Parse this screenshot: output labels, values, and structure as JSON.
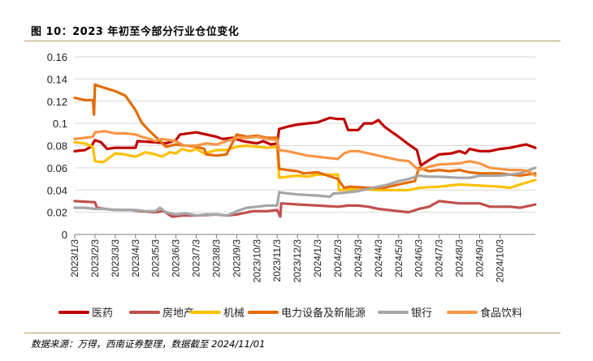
{
  "figure": {
    "title": "图 10：2023 年初至今部分行业仓位变化",
    "source": "数据来源：万得，西南证券整理，数据截至 2024/11/01"
  },
  "chart_data": {
    "type": "line",
    "title": "",
    "xlabel": "",
    "ylabel": "",
    "x": [
      "2023/1/3",
      "2023/2/3",
      "2023/3/3",
      "2023/4/3",
      "2023/5/3",
      "2023/6/3",
      "2023/7/3",
      "2023/8/3",
      "2023/9/3",
      "2023/10/3",
      "2023/11/3",
      "2023/12/3",
      "2024/1/3",
      "2024/2/3",
      "2024/3/3",
      "2024/4/3",
      "2024/5/3",
      "2024/6/3",
      "2024/7/3",
      "2024/8/3",
      "2024/9/3",
      "2024/10/3"
    ],
    "yticks": [
      "0",
      "0.02",
      "0.04",
      "0.06",
      "0.08",
      "0.1",
      "0.12",
      "0.14",
      "0.16"
    ],
    "ylim": [
      0,
      0.16
    ],
    "xlim": [
      0,
      22.75
    ],
    "grid": true,
    "legend": "bottom",
    "series": [
      {
        "name": "医药",
        "color": "#c00000",
        "points": [
          [
            0,
            0.075
          ],
          [
            0.5,
            0.076
          ],
          [
            0.8,
            0.079
          ],
          [
            1.0,
            0.085
          ],
          [
            1.3,
            0.083
          ],
          [
            1.6,
            0.077
          ],
          [
            2.0,
            0.078
          ],
          [
            3.0,
            0.078
          ],
          [
            3.1,
            0.084
          ],
          [
            4.0,
            0.083
          ],
          [
            4.5,
            0.082
          ],
          [
            5.0,
            0.085
          ],
          [
            5.2,
            0.09
          ],
          [
            6.0,
            0.092
          ],
          [
            6.5,
            0.09
          ],
          [
            7.0,
            0.088
          ],
          [
            7.3,
            0.086
          ],
          [
            7.8,
            0.087
          ],
          [
            8.3,
            0.084
          ],
          [
            9.0,
            0.082
          ],
          [
            9.3,
            0.084
          ],
          [
            9.7,
            0.081
          ],
          [
            10.0,
            0.082
          ],
          [
            10.1,
            0.095
          ],
          [
            10.5,
            0.097
          ],
          [
            11.0,
            0.099
          ],
          [
            11.5,
            0.1
          ],
          [
            12.0,
            0.101
          ],
          [
            12.3,
            0.103
          ],
          [
            12.6,
            0.105
          ],
          [
            13.0,
            0.104
          ],
          [
            13.3,
            0.104
          ],
          [
            13.5,
            0.094
          ],
          [
            14.0,
            0.094
          ],
          [
            14.3,
            0.1
          ],
          [
            14.7,
            0.1
          ],
          [
            15.0,
            0.103
          ],
          [
            15.3,
            0.097
          ],
          [
            15.6,
            0.093
          ],
          [
            16.0,
            0.088
          ],
          [
            16.5,
            0.081
          ],
          [
            16.9,
            0.076
          ],
          [
            17.1,
            0.062
          ],
          [
            17.5,
            0.067
          ],
          [
            18.0,
            0.072
          ],
          [
            18.6,
            0.073
          ],
          [
            19.0,
            0.075
          ],
          [
            19.3,
            0.073
          ],
          [
            19.5,
            0.077
          ],
          [
            20.0,
            0.075
          ],
          [
            20.5,
            0.075
          ],
          [
            21.0,
            0.077
          ],
          [
            21.5,
            0.078
          ],
          [
            22.0,
            0.08
          ],
          [
            22.3,
            0.081
          ],
          [
            22.75,
            0.078
          ]
        ]
      },
      {
        "name": "房地产",
        "color": "#c0504d",
        "points": [
          [
            0,
            0.03
          ],
          [
            1.0,
            0.029
          ],
          [
            1.1,
            0.024
          ],
          [
            1.5,
            0.023
          ],
          [
            2.0,
            0.022
          ],
          [
            2.8,
            0.022
          ],
          [
            3.2,
            0.021
          ],
          [
            4.0,
            0.02
          ],
          [
            4.4,
            0.021
          ],
          [
            4.8,
            0.016
          ],
          [
            5.3,
            0.017
          ],
          [
            6.0,
            0.017
          ],
          [
            7.0,
            0.018
          ],
          [
            7.5,
            0.017
          ],
          [
            8.0,
            0.018
          ],
          [
            8.8,
            0.021
          ],
          [
            9.5,
            0.021
          ],
          [
            10.0,
            0.022
          ],
          [
            10.15,
            0.016
          ],
          [
            10.2,
            0.028
          ],
          [
            11.0,
            0.027
          ],
          [
            12.0,
            0.026
          ],
          [
            13.0,
            0.025
          ],
          [
            13.5,
            0.026
          ],
          [
            14.0,
            0.026
          ],
          [
            14.5,
            0.025
          ],
          [
            15.0,
            0.023
          ],
          [
            16.0,
            0.021
          ],
          [
            16.5,
            0.02
          ],
          [
            17.0,
            0.023
          ],
          [
            17.5,
            0.025
          ],
          [
            18.0,
            0.03
          ],
          [
            18.5,
            0.029
          ],
          [
            19.0,
            0.028
          ],
          [
            20.0,
            0.028
          ],
          [
            20.5,
            0.025
          ],
          [
            21.0,
            0.025
          ],
          [
            21.5,
            0.025
          ],
          [
            22.0,
            0.024
          ],
          [
            22.5,
            0.026
          ],
          [
            22.75,
            0.027
          ]
        ]
      },
      {
        "name": "机械",
        "color": "#ffc000",
        "points": [
          [
            0,
            0.083
          ],
          [
            0.5,
            0.082
          ],
          [
            0.9,
            0.079
          ],
          [
            1.0,
            0.066
          ],
          [
            1.4,
            0.065
          ],
          [
            1.7,
            0.069
          ],
          [
            2.0,
            0.073
          ],
          [
            2.5,
            0.072
          ],
          [
            3.0,
            0.07
          ],
          [
            3.5,
            0.074
          ],
          [
            4.0,
            0.072
          ],
          [
            4.3,
            0.07
          ],
          [
            4.7,
            0.074
          ],
          [
            5.0,
            0.073
          ],
          [
            5.3,
            0.077
          ],
          [
            5.7,
            0.075
          ],
          [
            6.0,
            0.077
          ],
          [
            6.4,
            0.073
          ],
          [
            7.0,
            0.076
          ],
          [
            7.5,
            0.076
          ],
          [
            8.0,
            0.079
          ],
          [
            8.5,
            0.08
          ],
          [
            9.0,
            0.079
          ],
          [
            9.5,
            0.078
          ],
          [
            10.0,
            0.079
          ],
          [
            10.1,
            0.051
          ],
          [
            10.5,
            0.052
          ],
          [
            11.0,
            0.053
          ],
          [
            11.5,
            0.052
          ],
          [
            12.0,
            0.054
          ],
          [
            13.0,
            0.054
          ],
          [
            13.05,
            0.04
          ],
          [
            14.0,
            0.041
          ],
          [
            15.0,
            0.04
          ],
          [
            16.0,
            0.04
          ],
          [
            16.5,
            0.04
          ],
          [
            17.0,
            0.042
          ],
          [
            18.0,
            0.043
          ],
          [
            19.0,
            0.045
          ],
          [
            20.0,
            0.044
          ],
          [
            21.0,
            0.043
          ],
          [
            21.5,
            0.042
          ],
          [
            22.0,
            0.045
          ],
          [
            22.75,
            0.049
          ]
        ]
      },
      {
        "name": "电力设备及新能源",
        "color": "#e36c09",
        "points": [
          [
            0,
            0.123
          ],
          [
            0.5,
            0.121
          ],
          [
            0.9,
            0.121
          ],
          [
            0.95,
            0.108
          ],
          [
            1.0,
            0.135
          ],
          [
            1.3,
            0.133
          ],
          [
            2.0,
            0.129
          ],
          [
            2.5,
            0.125
          ],
          [
            3.0,
            0.112
          ],
          [
            3.3,
            0.101
          ],
          [
            3.7,
            0.093
          ],
          [
            4.0,
            0.088
          ],
          [
            4.5,
            0.079
          ],
          [
            5.0,
            0.081
          ],
          [
            5.5,
            0.08
          ],
          [
            6.0,
            0.079
          ],
          [
            6.4,
            0.077
          ],
          [
            6.5,
            0.072
          ],
          [
            7.0,
            0.071
          ],
          [
            7.5,
            0.072
          ],
          [
            8.0,
            0.09
          ],
          [
            8.5,
            0.088
          ],
          [
            9.0,
            0.089
          ],
          [
            9.5,
            0.087
          ],
          [
            10.0,
            0.087
          ],
          [
            10.1,
            0.059
          ],
          [
            10.5,
            0.058
          ],
          [
            11.0,
            0.057
          ],
          [
            11.3,
            0.055
          ],
          [
            12.0,
            0.056
          ],
          [
            12.5,
            0.053
          ],
          [
            13.0,
            0.05
          ],
          [
            13.3,
            0.042
          ],
          [
            13.6,
            0.043
          ],
          [
            14.5,
            0.042
          ],
          [
            15.3,
            0.042
          ],
          [
            16.0,
            0.045
          ],
          [
            16.5,
            0.047
          ],
          [
            16.8,
            0.048
          ],
          [
            17.0,
            0.06
          ],
          [
            17.5,
            0.057
          ],
          [
            18.0,
            0.058
          ],
          [
            18.5,
            0.057
          ],
          [
            19.0,
            0.058
          ],
          [
            19.5,
            0.056
          ],
          [
            20.0,
            0.055
          ],
          [
            21.0,
            0.055
          ],
          [
            21.5,
            0.054
          ],
          [
            22.0,
            0.053
          ],
          [
            22.75,
            0.055
          ]
        ]
      },
      {
        "name": "银行",
        "color": "#a6a6a6",
        "points": [
          [
            0,
            0.024
          ],
          [
            0.5,
            0.024
          ],
          [
            1.0,
            0.023
          ],
          [
            1.5,
            0.023
          ],
          [
            2.0,
            0.022
          ],
          [
            3.0,
            0.022
          ],
          [
            3.5,
            0.021
          ],
          [
            4.0,
            0.021
          ],
          [
            4.2,
            0.024
          ],
          [
            4.5,
            0.02
          ],
          [
            5.0,
            0.018
          ],
          [
            5.5,
            0.019
          ],
          [
            6.0,
            0.017
          ],
          [
            6.5,
            0.018
          ],
          [
            7.0,
            0.018
          ],
          [
            7.5,
            0.017
          ],
          [
            7.8,
            0.019
          ],
          [
            8.0,
            0.021
          ],
          [
            8.5,
            0.024
          ],
          [
            9.0,
            0.025
          ],
          [
            9.5,
            0.026
          ],
          [
            10.0,
            0.026
          ],
          [
            10.1,
            0.038
          ],
          [
            10.5,
            0.037
          ],
          [
            11.0,
            0.036
          ],
          [
            12.0,
            0.035
          ],
          [
            12.6,
            0.034
          ],
          [
            12.8,
            0.037
          ],
          [
            13.0,
            0.037
          ],
          [
            13.5,
            0.038
          ],
          [
            14.0,
            0.039
          ],
          [
            15.0,
            0.043
          ],
          [
            15.5,
            0.045
          ],
          [
            16.0,
            0.048
          ],
          [
            16.5,
            0.05
          ],
          [
            17.0,
            0.053
          ],
          [
            17.5,
            0.052
          ],
          [
            18.0,
            0.052
          ],
          [
            19.0,
            0.051
          ],
          [
            19.5,
            0.051
          ],
          [
            20.0,
            0.053
          ],
          [
            21.0,
            0.053
          ],
          [
            21.5,
            0.054
          ],
          [
            22.0,
            0.055
          ],
          [
            22.75,
            0.06
          ]
        ]
      },
      {
        "name": "食品饮料",
        "color": "#f79646",
        "points": [
          [
            0,
            0.086
          ],
          [
            0.5,
            0.087
          ],
          [
            0.9,
            0.088
          ],
          [
            1.0,
            0.092
          ],
          [
            1.5,
            0.093
          ],
          [
            2.0,
            0.091
          ],
          [
            2.5,
            0.091
          ],
          [
            3.0,
            0.09
          ],
          [
            3.3,
            0.088
          ],
          [
            3.7,
            0.086
          ],
          [
            4.0,
            0.084
          ],
          [
            4.3,
            0.086
          ],
          [
            5.0,
            0.084
          ],
          [
            5.4,
            0.08
          ],
          [
            6.0,
            0.08
          ],
          [
            6.5,
            0.082
          ],
          [
            7.0,
            0.081
          ],
          [
            7.5,
            0.084
          ],
          [
            8.0,
            0.087
          ],
          [
            8.5,
            0.087
          ],
          [
            9.0,
            0.088
          ],
          [
            9.5,
            0.086
          ],
          [
            10.0,
            0.085
          ],
          [
            10.1,
            0.076
          ],
          [
            10.5,
            0.075
          ],
          [
            11.0,
            0.073
          ],
          [
            11.5,
            0.071
          ],
          [
            12.0,
            0.07
          ],
          [
            12.5,
            0.069
          ],
          [
            13.0,
            0.068
          ],
          [
            13.3,
            0.073
          ],
          [
            13.6,
            0.075
          ],
          [
            14.0,
            0.075
          ],
          [
            14.5,
            0.073
          ],
          [
            15.0,
            0.071
          ],
          [
            15.5,
            0.069
          ],
          [
            16.0,
            0.067
          ],
          [
            16.5,
            0.066
          ],
          [
            16.8,
            0.061
          ],
          [
            17.0,
            0.058
          ],
          [
            17.5,
            0.061
          ],
          [
            18.0,
            0.063
          ],
          [
            19.0,
            0.064
          ],
          [
            19.5,
            0.066
          ],
          [
            20.0,
            0.064
          ],
          [
            20.5,
            0.06
          ],
          [
            21.0,
            0.059
          ],
          [
            21.5,
            0.058
          ],
          [
            22.0,
            0.058
          ],
          [
            22.4,
            0.057
          ],
          [
            22.75,
            0.053
          ]
        ]
      }
    ]
  }
}
